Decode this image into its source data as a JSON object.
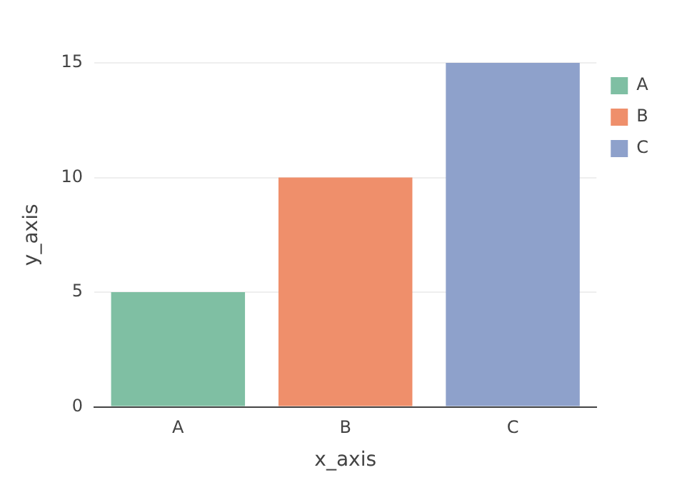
{
  "chart_data": {
    "type": "bar",
    "xlabel": "x_axis",
    "ylabel": "y_axis",
    "categories": [
      "A",
      "B",
      "C"
    ],
    "series": [
      {
        "name": "A",
        "color": "#7fbfa3",
        "values": [
          5,
          null,
          null
        ]
      },
      {
        "name": "B",
        "color": "#ef8f6b",
        "values": [
          null,
          10,
          null
        ]
      },
      {
        "name": "C",
        "color": "#8ea1cb",
        "values": [
          null,
          null,
          15
        ]
      }
    ],
    "ylim": [
      0,
      15
    ],
    "yticks": [
      0,
      5,
      10,
      15
    ],
    "grid": "y",
    "legend": "top right"
  }
}
